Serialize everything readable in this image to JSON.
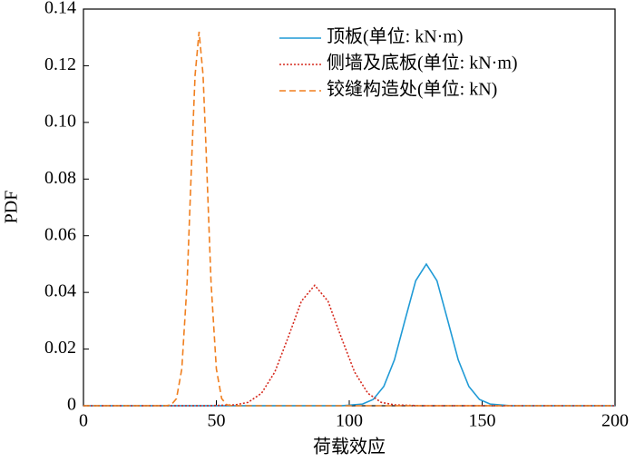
{
  "chart_data": {
    "type": "line",
    "xlabel": "荷载效应",
    "ylabel": "PDF",
    "xlim": [
      0,
      200
    ],
    "ylim": [
      0,
      0.14
    ],
    "xticks": [
      0,
      50,
      100,
      150,
      200
    ],
    "yticks": [
      0,
      0.02,
      0.04,
      0.06,
      0.08,
      {
        "value": 0.1,
        "label": "0.10"
      },
      0.12,
      0.14
    ],
    "legend": "upper right",
    "series": [
      {
        "name": "顶板(单位: kN·m)",
        "color": "#1f9ad6",
        "dash": "solid",
        "x": [
          0,
          97,
          105,
          109,
          113,
          117,
          121,
          125,
          129,
          133,
          137,
          141,
          145,
          149,
          153,
          161,
          200
        ],
        "values": [
          0,
          0,
          0.0006,
          0.0022,
          0.0068,
          0.0162,
          0.0303,
          0.0441,
          0.05,
          0.0441,
          0.0303,
          0.0162,
          0.0068,
          0.0022,
          0.0006,
          0,
          0
        ]
      },
      {
        "name": "侧墙及底板(单位: kN·m)",
        "color": "#d62a1e",
        "dash": "dotted",
        "x": [
          0,
          47,
          57,
          62,
          67,
          72,
          77,
          82,
          87,
          92,
          97,
          102,
          107,
          112,
          117,
          127,
          200
        ],
        "values": [
          0,
          0,
          0.0003,
          0.0012,
          0.0044,
          0.0119,
          0.0241,
          0.0369,
          0.0425,
          0.0369,
          0.0241,
          0.0119,
          0.0044,
          0.0012,
          0.0003,
          0,
          0
        ]
      },
      {
        "name": "铰缝构造处(单位: kN)",
        "color": "#f07f1f",
        "dash": "dashed",
        "x": [
          0,
          31,
          33,
          35,
          37,
          39,
          41,
          42,
          43.5,
          45,
          46,
          48,
          50,
          52,
          54,
          56,
          200
        ],
        "values": [
          0,
          0,
          0.0003,
          0.0025,
          0.013,
          0.0435,
          0.0937,
          0.1167,
          0.132,
          0.1167,
          0.0937,
          0.0435,
          0.013,
          0.0025,
          0.0003,
          0,
          0
        ]
      }
    ]
  }
}
